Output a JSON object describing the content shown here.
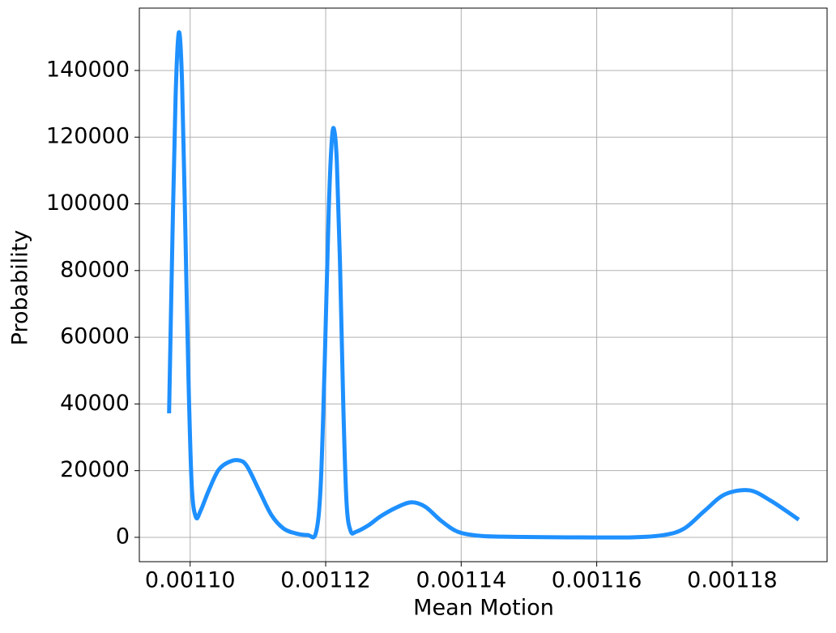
{
  "chart_data": {
    "type": "line",
    "x_label": "Mean Motion",
    "y_label": "Probability",
    "x": [
      0.00109689,
      0.00109737,
      0.00109785,
      0.00109833,
      0.0010988,
      0.00109928,
      0.00109976,
      0.00110024,
      0.00110084,
      0.00110155,
      0.00110275,
      0.00110419,
      0.00110574,
      0.00110718,
      0.00110837,
      0.00111017,
      0.00111196,
      0.00111375,
      0.00111555,
      0.00111734,
      0.00111854,
      0.00111926,
      0.00111985,
      0.00112045,
      0.00112093,
      0.00112129,
      0.00112165,
      0.00112213,
      0.0011226,
      0.00112308,
      0.00112368,
      0.00112452,
      0.00112631,
      0.00112811,
      0.0011305,
      0.00113265,
      0.00113468,
      0.00113708,
      0.00113947,
      0.00114246,
      0.00114605,
      0.00115561,
      0.00116518,
      0.00116997,
      0.00117296,
      0.00117595,
      0.00117894,
      0.00118252,
      0.00118551,
      0.00118791,
      0.00118982
    ],
    "series": [
      {
        "color": "#1e90ff",
        "values": [
          37200,
          88200,
          132000,
          151400,
          136800,
          93000,
          46900,
          15300,
          6100,
          8000,
          14100,
          20200,
          22600,
          23100,
          21400,
          14100,
          6800,
          2700,
          1200,
          700,
          1200,
          15300,
          51800,
          98000,
          119800,
          121800,
          112500,
          80900,
          39600,
          10500,
          1900,
          1700,
          3600,
          6300,
          9000,
          10500,
          9200,
          4900,
          1700,
          500,
          200,
          0,
          0,
          700,
          2700,
          8000,
          12900,
          14100,
          11200,
          8000,
          5300
        ]
      }
    ],
    "xlim": [
      0.0010925,
      0.001194
    ],
    "ylim": [
      -7300,
      158700
    ],
    "xticks": [
      {
        "value": 0.0011,
        "label": "0.00110"
      },
      {
        "value": 0.00112,
        "label": "0.00112"
      },
      {
        "value": 0.00114,
        "label": "0.00114"
      },
      {
        "value": 0.00116,
        "label": "0.00116"
      },
      {
        "value": 0.00118,
        "label": "0.00118"
      }
    ],
    "yticks": [
      0,
      20000,
      40000,
      60000,
      80000,
      100000,
      120000,
      140000
    ],
    "grid": true
  }
}
